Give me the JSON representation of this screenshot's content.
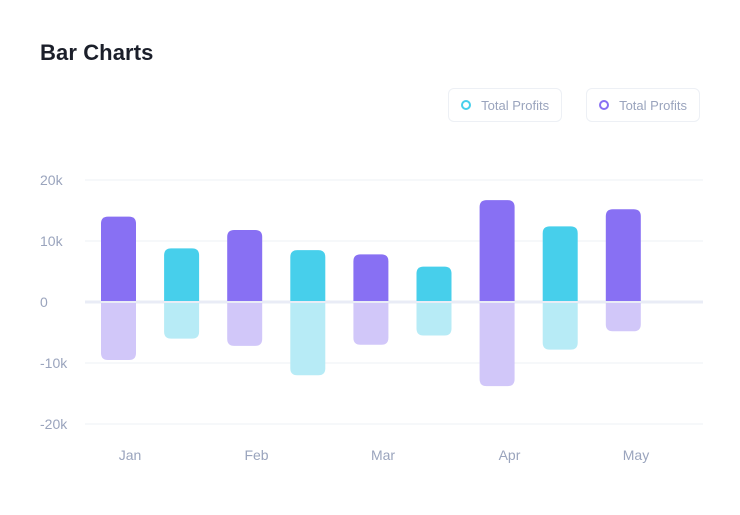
{
  "title": "Bar Charts",
  "legend": [
    {
      "label": "Total Profits",
      "color": "#47cfeb"
    },
    {
      "label": "Total Profits",
      "color": "#8870f3"
    }
  ],
  "colors": {
    "purple": "#8870f3",
    "purple_light": "#d1c7f9",
    "cyan": "#47cfeb",
    "cyan_light": "#b7ebf6",
    "grid": "#eef1f6",
    "zero_line": "#e9ecf6"
  },
  "chart_data": {
    "type": "bar",
    "ylim": [
      -20000,
      20000
    ],
    "y_ticks": [
      {
        "value": 20000,
        "label": "20k"
      },
      {
        "value": 10000,
        "label": "10k"
      },
      {
        "value": 0,
        "label": "0"
      },
      {
        "value": -10000,
        "label": "-10k"
      },
      {
        "value": -20000,
        "label": "-20k"
      }
    ],
    "x_labels": [
      "Jan",
      "Feb",
      "Mar",
      "Apr",
      "May"
    ],
    "bars": [
      {
        "series": "purple",
        "positive": 14000,
        "negative": -9500
      },
      {
        "series": "cyan",
        "positive": 8800,
        "negative": -6000
      },
      {
        "series": "purple",
        "positive": 11800,
        "negative": -7200
      },
      {
        "series": "cyan",
        "positive": 8500,
        "negative": -12000
      },
      {
        "series": "purple",
        "positive": 7800,
        "negative": -7000
      },
      {
        "series": "cyan",
        "positive": 5800,
        "negative": -5500
      },
      {
        "series": "purple",
        "positive": 16700,
        "negative": -13800
      },
      {
        "series": "cyan",
        "positive": 12400,
        "negative": -7800
      },
      {
        "series": "purple",
        "positive": 15200,
        "negative": -4800
      }
    ],
    "grid": true,
    "legend_position": "top-right"
  }
}
